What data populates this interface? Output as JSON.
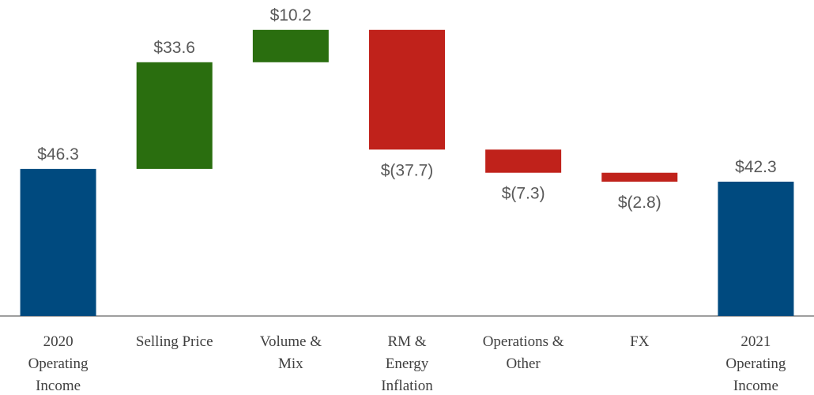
{
  "chart_data": {
    "type": "waterfall",
    "categories": [
      "2020\nOperating\nIncome",
      "Selling Price",
      "Volume &\nMix",
      "RM &\nEnergy\nInflation",
      "Operations &\nOther",
      "FX",
      "2021\nOperating\nIncome"
    ],
    "values": [
      46.3,
      33.6,
      10.2,
      -37.7,
      -7.3,
      -2.8,
      42.3
    ],
    "value_labels": [
      "$46.3",
      "$33.6",
      "$10.2",
      "$(37.7)",
      "$(7.3)",
      "$(2.8)",
      "$42.3"
    ],
    "measures": [
      "absolute",
      "relative",
      "relative",
      "relative",
      "relative",
      "relative",
      "total"
    ],
    "colors": {
      "total": "#004a7f",
      "increase": "#2a6e0f",
      "decrease": "#c0221b"
    },
    "ylim": [
      0,
      100
    ]
  }
}
